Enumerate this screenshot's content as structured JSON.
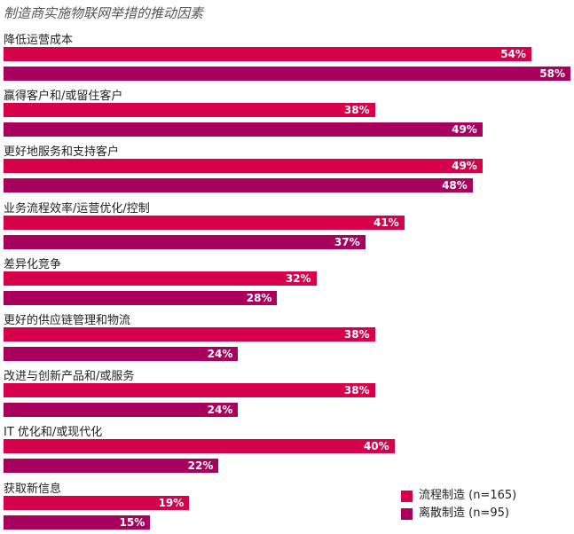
{
  "chart_data": {
    "type": "bar",
    "orientation": "horizontal",
    "title": "制造商实施物联网举措的推动因素",
    "categories": [
      "降低运营成本",
      "赢得客户和/或留住客户",
      "更好地服务和支持客户",
      "业务流程效率/运营优化/控制",
      "差异化竞争",
      "更好的供应链管理和物流",
      "改进与创新产品和/或服务",
      "IT 优化和/或现代化",
      "获取新信息"
    ],
    "series": [
      {
        "name": "流程制造 (n=165)",
        "color": "#D6004B",
        "values": [
          54,
          38,
          49,
          41,
          32,
          38,
          38,
          40,
          19
        ],
        "labels": [
          "54%",
          "38%",
          "49%",
          "41%",
          "32%",
          "38%",
          "38%",
          "40%",
          "19%"
        ]
      },
      {
        "name": "离散制造 (n=95)",
        "color": "#A8005C",
        "values": [
          58,
          49,
          48,
          37,
          28,
          24,
          24,
          22,
          15
        ],
        "labels": [
          "58%",
          "49%",
          "48%",
          "37%",
          "28%",
          "24%",
          "24%",
          "22%",
          "15%"
        ]
      }
    ],
    "unit": "%",
    "xlim": [
      0,
      58
    ],
    "grid": false,
    "legend_position": "bottom-right"
  }
}
